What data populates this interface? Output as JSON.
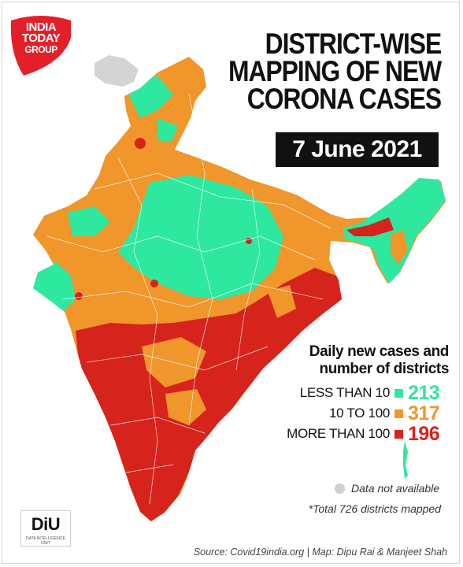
{
  "logo": {
    "lines": [
      "INDIA",
      "TODAY",
      "GROUP"
    ],
    "color": "#e3202a"
  },
  "title": {
    "lines": [
      "DISTRICT-WISE",
      "MAPPING OF NEW",
      "CORONA CASES"
    ],
    "date": "7 June 2021"
  },
  "legend": {
    "title_lines": [
      "Daily new cases and",
      "number of districts"
    ],
    "items": [
      {
        "label": "LESS THAN 10",
        "count": "213",
        "color": "#2ee8a0"
      },
      {
        "label": "10 TO 100",
        "count": "317",
        "color": "#f0962a"
      },
      {
        "label": "MORE THAN 100",
        "count": "196",
        "color": "#d6231b"
      }
    ],
    "not_available": "Data not available",
    "not_available_color": "#cfcfcf",
    "total_note": "*Total 726 districts mapped"
  },
  "badge": {
    "text": "DiU",
    "subtext": "DATA INTELLIGENCE UNIT"
  },
  "source": "Source: Covid19india.org | Map: Dipu Rai & Manjeet Shah"
}
